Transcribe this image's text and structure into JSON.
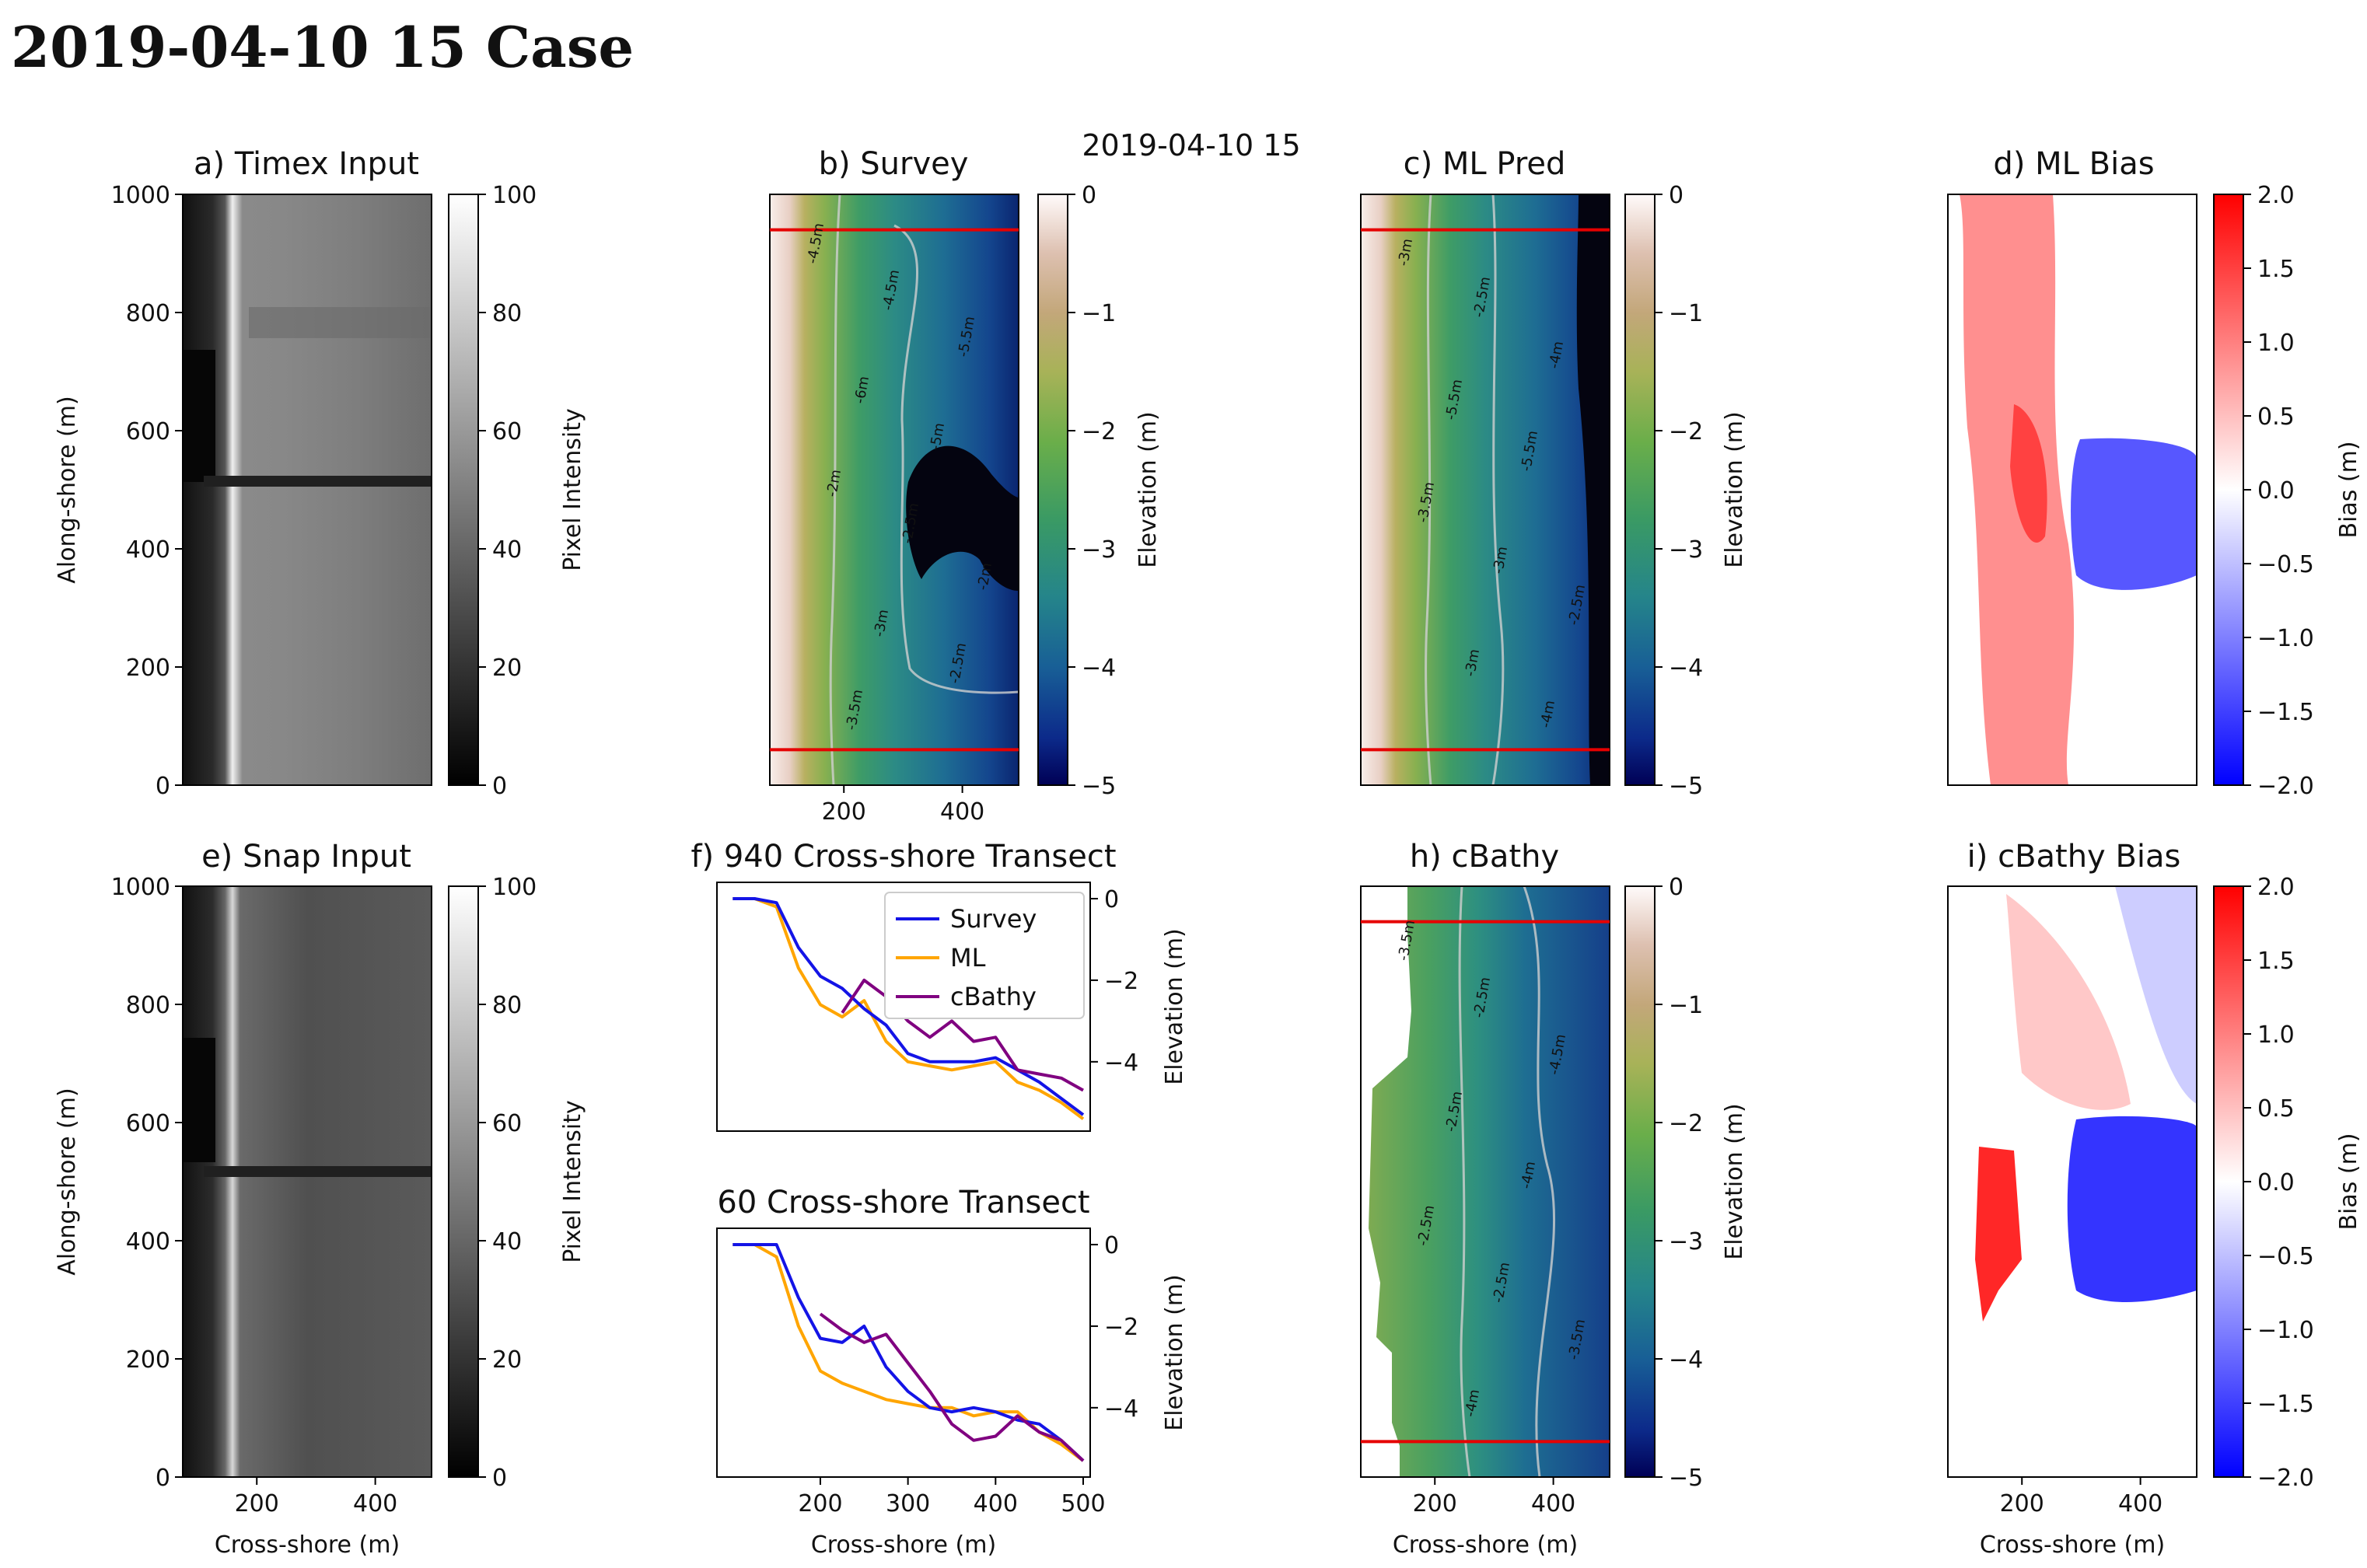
{
  "page": {
    "title": "2019-04-10 15 Case"
  },
  "figure": {
    "suptitle": "2019-04-10 15"
  },
  "colors": {
    "survey": "#1414e6",
    "ml": "#ffa500",
    "cbathy": "#800080",
    "transect_line": "#e60000"
  },
  "chart_data": [
    {
      "id": "a",
      "type": "heatmap",
      "title": "a) Timex Input",
      "xlabel": "",
      "ylabel": "Along-shore (m)",
      "xticks": [
        200,
        400
      ],
      "yticks": [
        0,
        200,
        400,
        600,
        800,
        1000
      ],
      "xlim": [
        75,
        495
      ],
      "ylim": [
        0,
        1000
      ],
      "colorbar": {
        "label": "Pixel Intensity",
        "ticks": [
          0,
          20,
          40,
          60,
          80,
          100
        ],
        "range": [
          0,
          100
        ],
        "colormap": "gray"
      }
    },
    {
      "id": "b",
      "type": "heatmap",
      "title": "b) Survey",
      "xlabel": "",
      "ylabel": "",
      "xticks": [
        200,
        400
      ],
      "yticks": [],
      "xlim": [
        75,
        495
      ],
      "ylim": [
        0,
        1000
      ],
      "transect_lines_m": [
        940,
        60
      ],
      "contour_labels": [
        "-4.5m",
        "-4.5m",
        "-5.5m",
        "-6m",
        "-5m",
        "-2m",
        "-2.5m",
        "-2m",
        "-3m",
        "-2.5m",
        "-3.5m"
      ],
      "colorbar": {
        "label": "Elevation (m)",
        "ticks": [
          0,
          -1,
          -2,
          -3,
          -4,
          -5
        ],
        "range": [
          -5,
          0
        ],
        "colormap": "gist_earth"
      }
    },
    {
      "id": "c",
      "type": "heatmap",
      "title": "c) ML Pred",
      "xlabel": "",
      "ylabel": "",
      "xticks": [],
      "yticks": [],
      "xlim": [
        75,
        495
      ],
      "ylim": [
        0,
        1000
      ],
      "transect_lines_m": [
        940,
        60
      ],
      "contour_labels": [
        "-3m",
        "-2.5m",
        "-4m",
        "-5.5m",
        "-5.5m",
        "-3.5m",
        "-3m",
        "-2.5m",
        "-3m",
        "-4m"
      ],
      "colorbar": {
        "label": "Elevation (m)",
        "ticks": [
          0,
          -1,
          -2,
          -3,
          -4,
          -5
        ],
        "range": [
          -5,
          0
        ],
        "colormap": "gist_earth"
      }
    },
    {
      "id": "d",
      "type": "heatmap",
      "title": "d) ML Bias",
      "xlabel": "",
      "ylabel": "",
      "xticks": [],
      "yticks": [],
      "xlim": [
        75,
        495
      ],
      "ylim": [
        0,
        1000
      ],
      "colorbar": {
        "label": "Bias (m)",
        "ticks": [
          2.0,
          1.5,
          1.0,
          0.5,
          0.0,
          -0.5,
          -1.0,
          -1.5,
          -2.0
        ],
        "range": [
          -2,
          2
        ],
        "colormap": "bwr"
      }
    },
    {
      "id": "e",
      "type": "heatmap",
      "title": "e) Snap Input",
      "xlabel": "Cross-shore (m)",
      "ylabel": "Along-shore (m)",
      "xticks": [
        200,
        400
      ],
      "yticks": [
        0,
        200,
        400,
        600,
        800,
        1000
      ],
      "xlim": [
        75,
        495
      ],
      "ylim": [
        0,
        1000
      ],
      "colorbar": {
        "label": "Pixel Intensity",
        "ticks": [
          0,
          20,
          40,
          60,
          80,
          100
        ],
        "range": [
          0,
          100
        ],
        "colormap": "gray"
      }
    },
    {
      "id": "f",
      "type": "line",
      "title": "f) 940 Cross-shore Transect",
      "xlabel": "",
      "ylabel": "Elevation (m)",
      "xlim": [
        82,
        508
      ],
      "ylim": [
        -5.7,
        0.4
      ],
      "yticks": [
        0,
        -2,
        -4
      ],
      "legend": "top-right",
      "legend_labels": [
        "Survey",
        "ML",
        "cBathy"
      ],
      "x": [
        100,
        125,
        150,
        175,
        200,
        225,
        250,
        275,
        300,
        325,
        350,
        375,
        400,
        425,
        450,
        475,
        500
      ],
      "series": [
        {
          "name": "Survey",
          "color_key": "survey",
          "values": [
            0,
            0,
            -0.1,
            -1.2,
            -1.9,
            -2.2,
            -2.7,
            -3.1,
            -3.8,
            -4.0,
            -4.0,
            -4.0,
            -3.9,
            -4.2,
            -4.5,
            -4.9,
            -5.3
          ]
        },
        {
          "name": "ML",
          "color_key": "ml",
          "values": [
            0,
            0,
            -0.2,
            -1.7,
            -2.6,
            -2.9,
            -2.5,
            -3.5,
            -4.0,
            -4.1,
            -4.2,
            -4.1,
            -4.0,
            -4.5,
            -4.7,
            -5.0,
            -5.4
          ]
        },
        {
          "name": "cBathy",
          "x_start": 205,
          "values": [
            null,
            null,
            null,
            null,
            null,
            -2.8,
            -2.0,
            -2.4,
            -3.0,
            -3.4,
            -3.0,
            -3.5,
            -3.4,
            -4.2,
            -4.3,
            -4.4,
            -4.7
          ]
        }
      ]
    },
    {
      "id": "g",
      "type": "line",
      "title": "60 Cross-shore Transect",
      "xlabel": "Cross-shore (m)",
      "ylabel": "Elevation (m)",
      "xlim": [
        82,
        508
      ],
      "ylim": [
        -5.7,
        0.4
      ],
      "xticks": [
        200,
        300,
        400,
        500
      ],
      "yticks": [
        0,
        -2,
        -4
      ],
      "x": [
        100,
        125,
        150,
        175,
        200,
        225,
        250,
        275,
        300,
        325,
        350,
        375,
        400,
        425,
        450,
        475,
        500
      ],
      "series": [
        {
          "name": "Survey",
          "color_key": "survey",
          "values": [
            0,
            0,
            0,
            -1.3,
            -2.3,
            -2.4,
            -2.0,
            -3.0,
            -3.6,
            -4.0,
            -4.1,
            -4.0,
            -4.1,
            -4.3,
            -4.4,
            -4.8,
            -5.3
          ]
        },
        {
          "name": "ML",
          "color_key": "ml",
          "values": [
            0,
            0,
            -0.3,
            -2.0,
            -3.1,
            -3.4,
            -3.6,
            -3.8,
            -3.9,
            -4.0,
            -4.0,
            -4.2,
            -4.1,
            -4.1,
            -4.6,
            -4.9,
            -5.3
          ]
        },
        {
          "name": "cBathy",
          "x_start": 190,
          "values": [
            null,
            null,
            null,
            null,
            -1.7,
            -2.1,
            -2.4,
            -2.2,
            -2.9,
            -3.6,
            -4.4,
            -4.8,
            -4.7,
            -4.2,
            -4.6,
            -4.8,
            -5.3
          ]
        }
      ]
    },
    {
      "id": "h",
      "type": "heatmap",
      "title": "h) cBathy",
      "xlabel": "Cross-shore (m)",
      "ylabel": "",
      "xticks": [
        200,
        400
      ],
      "yticks": [],
      "xlim": [
        75,
        495
      ],
      "ylim": [
        0,
        1000
      ],
      "transect_lines_m": [
        940,
        60
      ],
      "contour_labels": [
        "-3.5m",
        "-2.5m",
        "-4.5m",
        "-2.5m",
        "-4m",
        "-2.5m",
        "-2.5m",
        "-3.5m",
        "-4m"
      ],
      "colorbar": {
        "label": "Elevation (m)",
        "ticks": [
          0,
          -1,
          -2,
          -3,
          -4,
          -5
        ],
        "range": [
          -5,
          0
        ],
        "colormap": "gist_earth"
      }
    },
    {
      "id": "i",
      "type": "heatmap",
      "title": "i) cBathy Bias",
      "xlabel": "Cross-shore (m)",
      "ylabel": "",
      "xticks": [
        200,
        400
      ],
      "yticks": [],
      "xlim": [
        75,
        495
      ],
      "ylim": [
        0,
        1000
      ],
      "colorbar": {
        "label": "Bias (m)",
        "ticks": [
          2.0,
          1.5,
          1.0,
          0.5,
          0.0,
          -0.5,
          -1.0,
          -1.5,
          -2.0
        ],
        "range": [
          -2,
          2
        ],
        "colormap": "bwr"
      }
    }
  ]
}
